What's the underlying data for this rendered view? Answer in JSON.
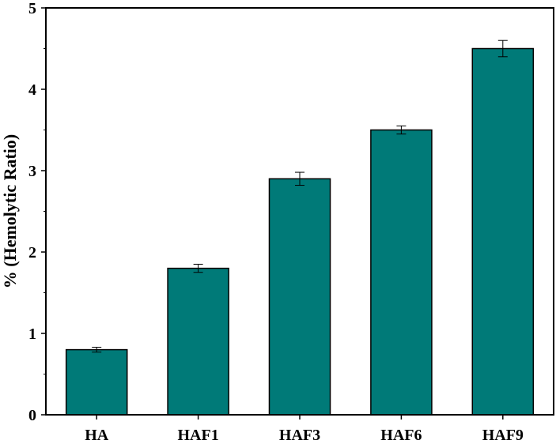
{
  "chart_data": {
    "type": "bar",
    "title": "",
    "xlabel": "",
    "ylabel": "% (Hemolytic Ratio)",
    "categories": [
      "HA",
      "HAF1",
      "HAF3",
      "HAF6",
      "HAF9"
    ],
    "values": [
      0.8,
      1.8,
      2.9,
      3.5,
      4.5
    ],
    "errors": [
      0.03,
      0.05,
      0.08,
      0.05,
      0.1
    ],
    "ylim": [
      0,
      5
    ],
    "yticks": [
      0,
      1,
      2,
      3,
      4,
      5
    ],
    "grid": false,
    "bar_color": "#007a78",
    "edge_color": "#000000"
  }
}
